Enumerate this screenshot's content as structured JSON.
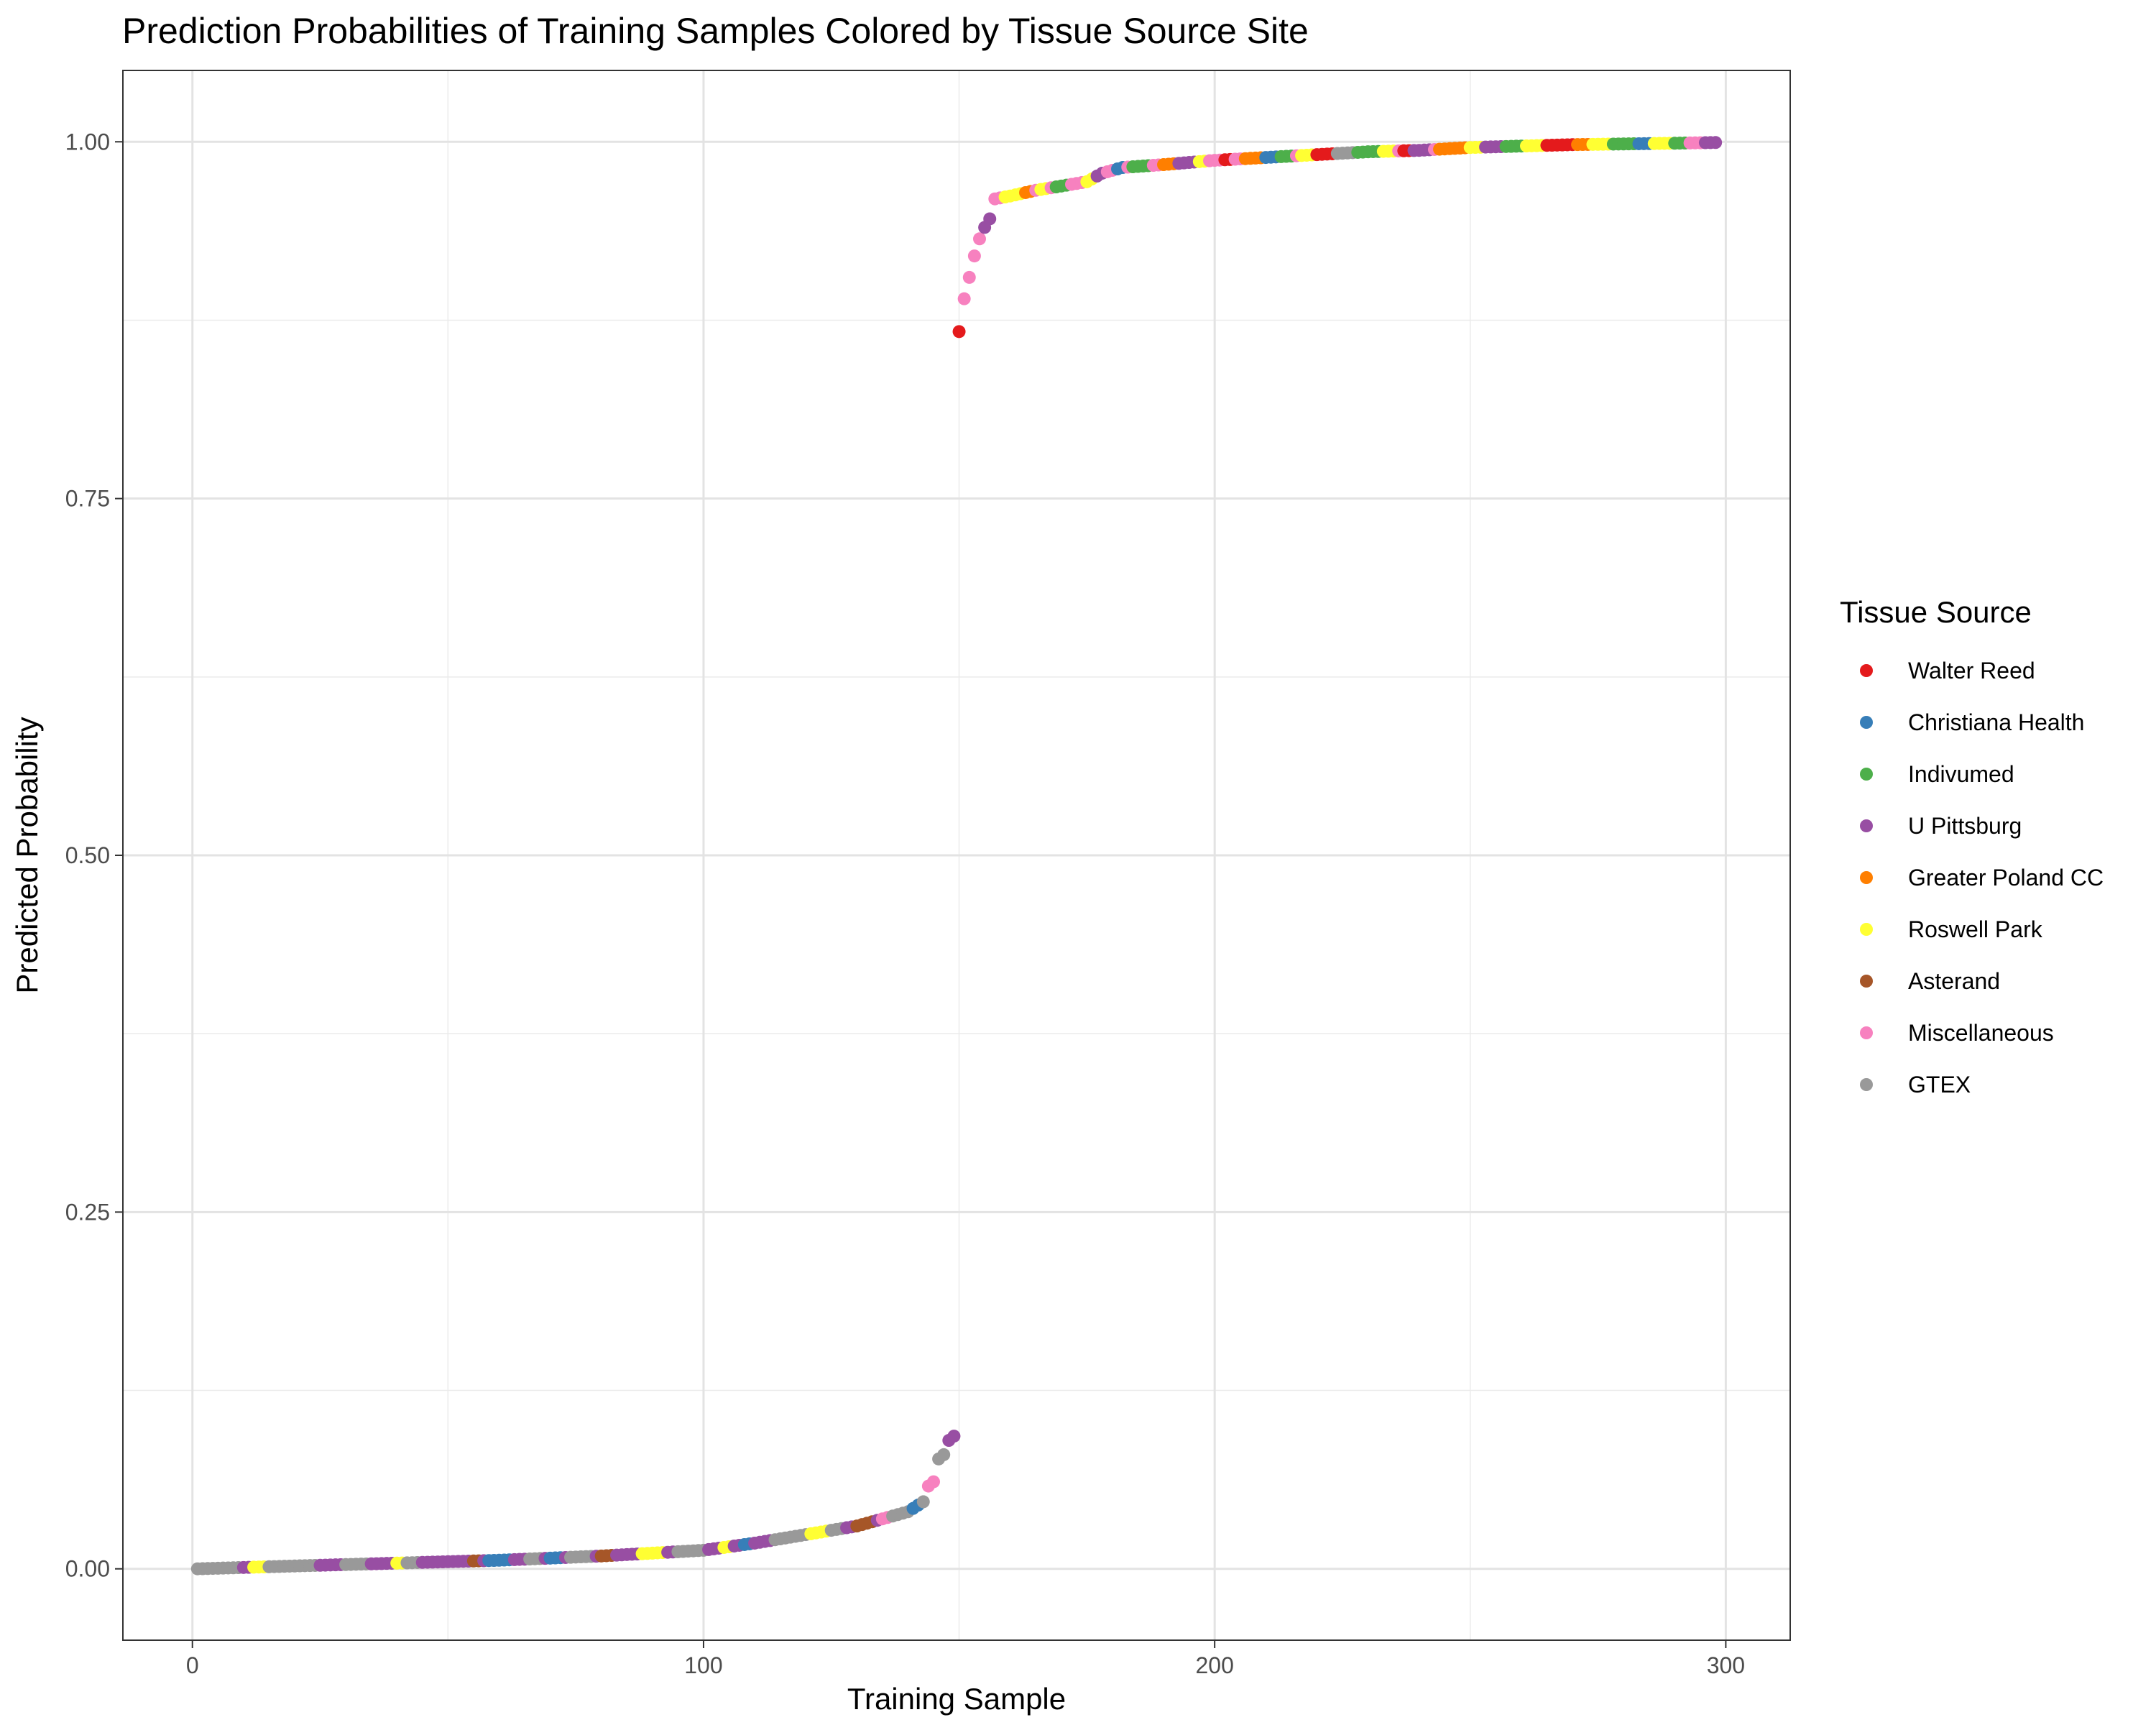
{
  "chart_data": {
    "type": "scatter",
    "title": "Prediction Probabilities of Training Samples Colored by Tissue Source Site",
    "xlabel": "Training Sample",
    "ylabel": "Predicted Probability",
    "xlim": [
      -13.6,
      312.6
    ],
    "ylim": [
      -0.05,
      1.05
    ],
    "x_ticks": [
      0,
      100,
      200,
      300
    ],
    "y_ticks": [
      0.0,
      0.25,
      0.5,
      0.75,
      1.0
    ],
    "x_tick_labels": [
      "0",
      "100",
      "200",
      "300"
    ],
    "y_tick_labels": [
      "0.00",
      "0.25",
      "0.50",
      "0.75",
      "1.00"
    ],
    "grid": true,
    "legend_position": "right",
    "legend_title": "Tissue Source",
    "series": [
      {
        "name": "Walter Reed",
        "color": "#E41A1C"
      },
      {
        "name": "Christiana Health",
        "color": "#377EB8"
      },
      {
        "name": "Indivumed",
        "color": "#4DAF4A"
      },
      {
        "name": "U Pittsburg",
        "color": "#984EA3"
      },
      {
        "name": "Greater Poland CC",
        "color": "#FF7F00"
      },
      {
        "name": "Roswell Park",
        "color": "#FFFF33"
      },
      {
        "name": "Asterand",
        "color": "#A65628"
      },
      {
        "name": "Miscellaneous",
        "color": "#F781BF"
      },
      {
        "name": "GTEX",
        "color": "#999999"
      }
    ],
    "n_samples": 298,
    "segments": [
      {
        "x_start": 1,
        "x_end": 149,
        "default_series": "U Pittsburg",
        "anchors": [
          [
            1,
            0.0
          ],
          [
            20,
            0.002
          ],
          [
            40,
            0.004
          ],
          [
            60,
            0.006
          ],
          [
            80,
            0.009
          ],
          [
            100,
            0.013
          ],
          [
            110,
            0.018
          ],
          [
            120,
            0.024
          ],
          [
            130,
            0.03
          ],
          [
            136,
            0.036
          ],
          [
            140,
            0.04
          ],
          [
            143,
            0.047
          ],
          [
            144,
            0.058
          ],
          [
            145,
            0.061
          ],
          [
            146,
            0.077
          ],
          [
            147,
            0.08
          ],
          [
            148,
            0.09
          ],
          [
            149,
            0.093
          ]
        ],
        "runs": [
          [
            1,
            9,
            "GTEX"
          ],
          [
            12,
            14,
            "Roswell Park"
          ],
          [
            15,
            24,
            "GTEX"
          ],
          [
            30,
            34,
            "GTEX"
          ],
          [
            40,
            41,
            "Roswell Park"
          ],
          [
            42,
            44,
            "GTEX"
          ],
          [
            55,
            56,
            "Asterand"
          ],
          [
            58,
            62,
            "Christiana Health"
          ],
          [
            66,
            68,
            "GTEX"
          ],
          [
            70,
            72,
            "Christiana Health"
          ],
          [
            74,
            78,
            "GTEX"
          ],
          [
            80,
            82,
            "Asterand"
          ],
          [
            88,
            92,
            "Roswell Park"
          ],
          [
            95,
            100,
            "GTEX"
          ],
          [
            104,
            105,
            "Roswell Park"
          ],
          [
            108,
            109,
            "Christiana Health"
          ],
          [
            114,
            120,
            "GTEX"
          ],
          [
            121,
            124,
            "Roswell Park"
          ],
          [
            125,
            127,
            "GTEX"
          ],
          [
            130,
            133,
            "Asterand"
          ],
          [
            135,
            136,
            "Miscellaneous"
          ],
          [
            137,
            140,
            "GTEX"
          ],
          [
            141,
            142,
            "Christiana Health"
          ],
          [
            143,
            143,
            "GTEX"
          ],
          [
            144,
            145,
            "Miscellaneous"
          ],
          [
            146,
            147,
            "GTEX"
          ]
        ]
      },
      {
        "x_start": 150,
        "x_end": 298,
        "default_series": "Miscellaneous",
        "anchors": [
          [
            150,
            0.867
          ],
          [
            151,
            0.89
          ],
          [
            152,
            0.905
          ],
          [
            153,
            0.92
          ],
          [
            154,
            0.932
          ],
          [
            155,
            0.94
          ],
          [
            156,
            0.946
          ],
          [
            157,
            0.96
          ],
          [
            160,
            0.962
          ],
          [
            165,
            0.966
          ],
          [
            170,
            0.969
          ],
          [
            175,
            0.972
          ],
          [
            178,
            0.978
          ],
          [
            182,
            0.982
          ],
          [
            190,
            0.984
          ],
          [
            200,
            0.987
          ],
          [
            210,
            0.989
          ],
          [
            220,
            0.991
          ],
          [
            230,
            0.993
          ],
          [
            240,
            0.994
          ],
          [
            250,
            0.996
          ],
          [
            260,
            0.997
          ],
          [
            270,
            0.998
          ],
          [
            280,
            0.9985
          ],
          [
            290,
            0.999
          ],
          [
            298,
            0.9995
          ]
        ],
        "runs": [
          [
            150,
            150,
            "Walter Reed"
          ],
          [
            155,
            156,
            "U Pittsburg"
          ],
          [
            159,
            162,
            "Roswell Park"
          ],
          [
            163,
            164,
            "Greater Poland CC"
          ],
          [
            166,
            167,
            "Roswell Park"
          ],
          [
            169,
            171,
            "Indivumed"
          ],
          [
            175,
            176,
            "Roswell Park"
          ],
          [
            177,
            178,
            "U Pittsburg"
          ],
          [
            181,
            182,
            "Christiana Health"
          ],
          [
            184,
            187,
            "Indivumed"
          ],
          [
            190,
            192,
            "Greater Poland CC"
          ],
          [
            193,
            196,
            "U Pittsburg"
          ],
          [
            197,
            198,
            "Roswell Park"
          ],
          [
            202,
            203,
            "Walter Reed"
          ],
          [
            206,
            209,
            "Greater Poland CC"
          ],
          [
            210,
            212,
            "Christiana Health"
          ],
          [
            213,
            215,
            "Indivumed"
          ],
          [
            217,
            219,
            "Roswell Park"
          ],
          [
            220,
            223,
            "Walter Reed"
          ],
          [
            224,
            227,
            "GTEX"
          ],
          [
            228,
            232,
            "Indivumed"
          ],
          [
            233,
            235,
            "Roswell Park"
          ],
          [
            237,
            238,
            "Walter Reed"
          ],
          [
            239,
            242,
            "U Pittsburg"
          ],
          [
            244,
            249,
            "Greater Poland CC"
          ],
          [
            250,
            252,
            "Roswell Park"
          ],
          [
            253,
            256,
            "U Pittsburg"
          ],
          [
            257,
            260,
            "Indivumed"
          ],
          [
            261,
            264,
            "Roswell Park"
          ],
          [
            265,
            270,
            "Walter Reed"
          ],
          [
            271,
            273,
            "Greater Poland CC"
          ],
          [
            274,
            277,
            "Roswell Park"
          ],
          [
            278,
            282,
            "Indivumed"
          ],
          [
            283,
            285,
            "Christiana Health"
          ],
          [
            286,
            289,
            "Roswell Park"
          ],
          [
            290,
            292,
            "Indivumed"
          ],
          [
            293,
            295,
            "Miscellaneous"
          ],
          [
            296,
            298,
            "U Pittsburg"
          ]
        ]
      }
    ]
  }
}
